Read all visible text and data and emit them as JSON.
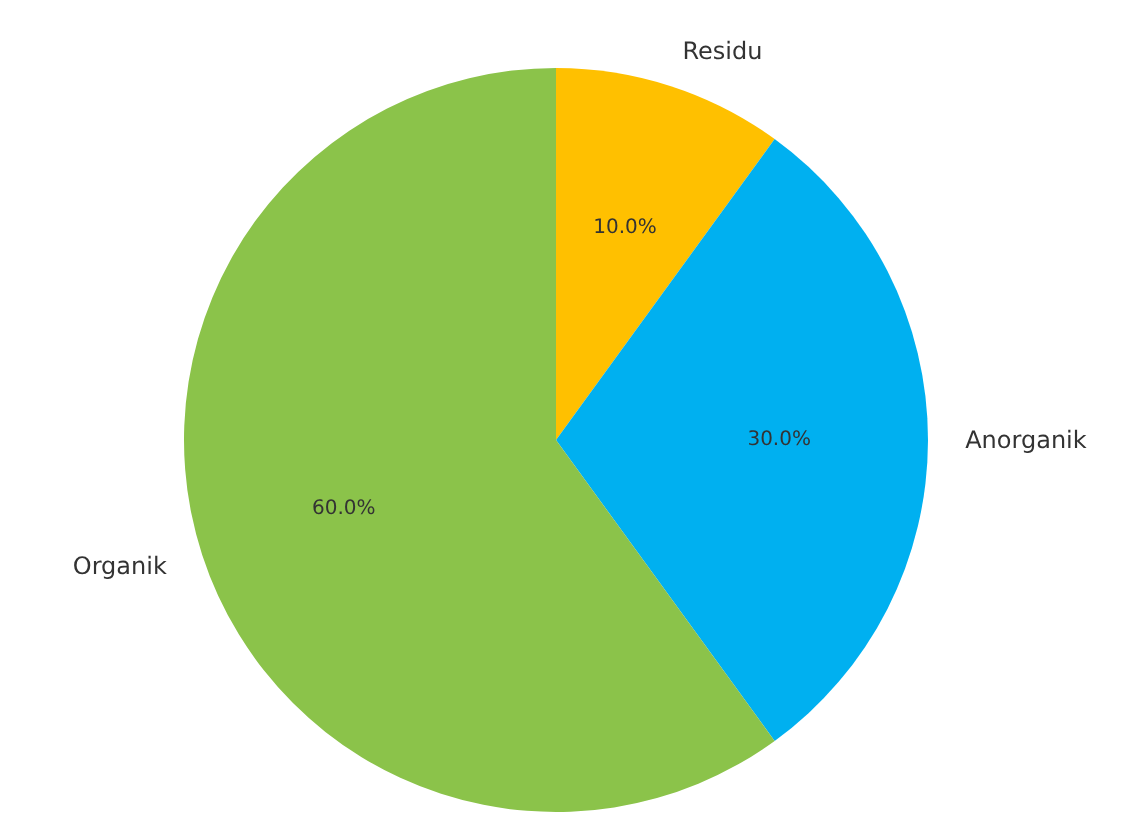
{
  "chart_data": {
    "type": "pie",
    "categories": [
      "Residu",
      "Anorganik",
      "Organik"
    ],
    "values": [
      10,
      30,
      60
    ],
    "colors": [
      "#ffc000",
      "#00b0f0",
      "#8bc34a"
    ],
    "value_labels": [
      "10.0%",
      "30.0%",
      "60.0%"
    ]
  }
}
